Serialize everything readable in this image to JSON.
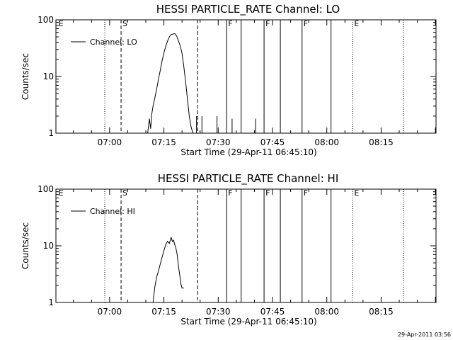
{
  "chart_data": [
    {
      "type": "line",
      "title": "HESSI PARTICLE_RATE Channel: LO",
      "xlabel": "Start Time (29-Apr-11 06:45:10)",
      "ylabel": "Counts/sec",
      "yscale": "log",
      "ylim": [
        1,
        100
      ],
      "xlim": [
        "06:45:10",
        "08:30:10"
      ],
      "x_ticks": [
        "07:00",
        "07:15",
        "07:30",
        "07:45",
        "08:00",
        "08:15"
      ],
      "y_ticks": [
        "1",
        "10",
        "100"
      ],
      "legend": {
        "label": "Channel: LO",
        "placement": "top-left"
      },
      "series": [
        {
          "name": "Channel: LO",
          "x": [
            "07:10:30",
            "07:11:00",
            "07:11:20",
            "07:11:40",
            "07:12:00",
            "07:12:30",
            "07:13:00",
            "07:13:30",
            "07:14:00",
            "07:14:30",
            "07:15:00",
            "07:15:30",
            "07:16:00",
            "07:16:30",
            "07:17:00",
            "07:17:30",
            "07:18:00",
            "07:18:30",
            "07:19:00",
            "07:19:30",
            "07:20:00",
            "07:20:30",
            "07:21:00",
            "07:21:30",
            "07:22:00",
            "07:22:30",
            "07:23:00"
          ],
          "values": [
            1.0,
            1.8,
            1.2,
            2.2,
            3.0,
            4.2,
            6.0,
            9.0,
            13,
            19,
            26,
            34,
            42,
            50,
            55,
            56,
            57,
            52,
            43,
            35,
            26,
            15,
            8,
            4,
            2,
            1.3,
            1.0
          ]
        }
      ],
      "annotations": [
        {
          "label": "E",
          "time": "06:45:30",
          "style": "dotted",
          "line": false
        },
        {
          "label": "",
          "time": "06:58:40",
          "style": "dotted",
          "line": true
        },
        {
          "label": "S",
          "time": "07:03:10",
          "style": "dashed",
          "line": true
        },
        {
          "label": "",
          "time": "07:24:20",
          "style": "dashed",
          "line": true
        },
        {
          "label": "F",
          "time": "07:32:20",
          "style": "solid",
          "line": true
        },
        {
          "label": "",
          "time": "07:36:20",
          "style": "solid",
          "line": true
        },
        {
          "label": "F",
          "time": "07:42:40",
          "style": "solid",
          "line": true
        },
        {
          "label": "",
          "time": "07:47:10",
          "style": "solid",
          "line": true
        },
        {
          "label": "F",
          "time": "07:53:10",
          "style": "solid",
          "line": true
        },
        {
          "label": "",
          "time": "08:01:10",
          "style": "solid",
          "line": true
        },
        {
          "label": "E",
          "time": "08:07:10",
          "style": "dotted",
          "line": true
        },
        {
          "label": "",
          "time": "08:21:10",
          "style": "dotted",
          "line": true
        }
      ],
      "spikes": [
        {
          "time": "07:24:00",
          "value": 2.0
        },
        {
          "time": "07:25:30",
          "value": 2.0
        },
        {
          "time": "07:29:40",
          "value": 2.0
        },
        {
          "time": "07:33:50",
          "value": 1.8
        },
        {
          "time": "07:40:20",
          "value": 1.8
        }
      ]
    },
    {
      "type": "line",
      "title": "HESSI PARTICLE_RATE Channel: HI",
      "xlabel": "Start Time (29-Apr-11 06:45:10)",
      "ylabel": "Counts/sec",
      "yscale": "log",
      "ylim": [
        1,
        100
      ],
      "xlim": [
        "06:45:10",
        "08:30:10"
      ],
      "x_ticks": [
        "07:00",
        "07:15",
        "07:30",
        "07:45",
        "08:00",
        "08:15"
      ],
      "y_ticks": [
        "1",
        "10",
        "100"
      ],
      "legend": {
        "label": "Channel: HI",
        "placement": "top-left"
      },
      "series": [
        {
          "name": "Channel: HI",
          "x": [
            "07:12:00",
            "07:12:30",
            "07:13:00",
            "07:13:30",
            "07:14:00",
            "07:14:30",
            "07:15:00",
            "07:15:30",
            "07:16:00",
            "07:16:30",
            "07:17:00",
            "07:17:20",
            "07:17:40",
            "07:18:00",
            "07:18:20",
            "07:18:40",
            "07:19:00",
            "07:19:20",
            "07:19:40",
            "07:20:00",
            "07:20:30"
          ],
          "values": [
            1.0,
            1.9,
            2.8,
            3.6,
            4.8,
            6.3,
            8.2,
            10.5,
            12,
            11,
            14,
            12,
            12.5,
            10.5,
            9,
            7,
            4.5,
            3.2,
            2.2,
            1.8,
            1.8
          ]
        }
      ],
      "annotations": [
        {
          "label": "E",
          "time": "06:45:30",
          "style": "dotted",
          "line": false
        },
        {
          "label": "",
          "time": "06:58:40",
          "style": "dotted",
          "line": true
        },
        {
          "label": "S",
          "time": "07:03:10",
          "style": "dashed",
          "line": true
        },
        {
          "label": "",
          "time": "07:24:20",
          "style": "dashed",
          "line": true
        },
        {
          "label": "F",
          "time": "07:32:20",
          "style": "solid",
          "line": true
        },
        {
          "label": "",
          "time": "07:36:20",
          "style": "solid",
          "line": true
        },
        {
          "label": "F",
          "time": "07:42:40",
          "style": "solid",
          "line": true
        },
        {
          "label": "",
          "time": "07:47:10",
          "style": "solid",
          "line": true
        },
        {
          "label": "F",
          "time": "07:53:10",
          "style": "solid",
          "line": true
        },
        {
          "label": "",
          "time": "08:01:10",
          "style": "solid",
          "line": true
        },
        {
          "label": "E",
          "time": "08:07:10",
          "style": "dotted",
          "line": true
        },
        {
          "label": "",
          "time": "08:21:10",
          "style": "dotted",
          "line": true
        }
      ],
      "spikes": []
    }
  ],
  "footer": {
    "timestamp": "29-Apr-2011 03:56"
  }
}
